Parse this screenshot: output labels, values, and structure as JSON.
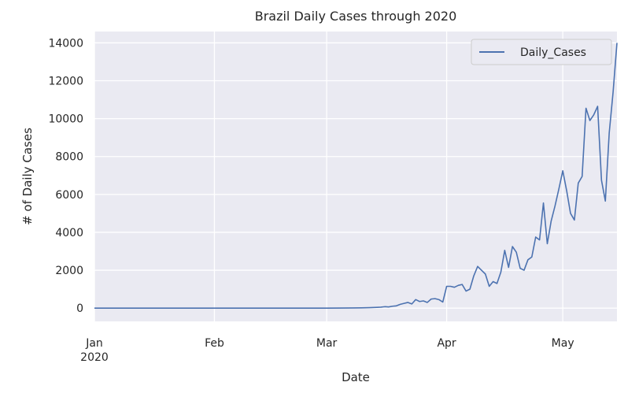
{
  "chart_data": {
    "type": "line",
    "title": "Brazil Daily Cases through 2020",
    "xlabel": "Date",
    "ylabel": "# of Daily Cases",
    "xlim": [
      "2020-01-01",
      "2020-05-15"
    ],
    "ylim": [
      -700,
      14600
    ],
    "grid": true,
    "legend": "top-right",
    "x_ticks": [
      {
        "date": "2020-01-01",
        "label": "Jan",
        "sublabel": "2020"
      },
      {
        "date": "2020-02-01",
        "label": "Feb"
      },
      {
        "date": "2020-03-01",
        "label": "Mar"
      },
      {
        "date": "2020-04-01",
        "label": "Apr"
      },
      {
        "date": "2020-05-01",
        "label": "May"
      }
    ],
    "y_ticks": [
      0,
      2000,
      4000,
      6000,
      8000,
      10000,
      12000,
      14000
    ],
    "series": [
      {
        "name": "Daily_Cases",
        "color": "#4c72b0",
        "points": [
          [
            "2020-01-01",
            0
          ],
          [
            "2020-02-25",
            0
          ],
          [
            "2020-03-01",
            0
          ],
          [
            "2020-03-05",
            3
          ],
          [
            "2020-03-08",
            10
          ],
          [
            "2020-03-10",
            15
          ],
          [
            "2020-03-12",
            25
          ],
          [
            "2020-03-14",
            40
          ],
          [
            "2020-03-15",
            50
          ],
          [
            "2020-03-16",
            75
          ],
          [
            "2020-03-17",
            60
          ],
          [
            "2020-03-18",
            100
          ],
          [
            "2020-03-19",
            120
          ],
          [
            "2020-03-20",
            200
          ],
          [
            "2020-03-21",
            250
          ],
          [
            "2020-03-22",
            300
          ],
          [
            "2020-03-23",
            220
          ],
          [
            "2020-03-24",
            450
          ],
          [
            "2020-03-25",
            350
          ],
          [
            "2020-03-26",
            380
          ],
          [
            "2020-03-27",
            300
          ],
          [
            "2020-03-28",
            480
          ],
          [
            "2020-03-29",
            500
          ],
          [
            "2020-03-30",
            450
          ],
          [
            "2020-03-31",
            320
          ],
          [
            "2020-04-01",
            1150
          ],
          [
            "2020-04-02",
            1150
          ],
          [
            "2020-04-03",
            1100
          ],
          [
            "2020-04-04",
            1200
          ],
          [
            "2020-04-05",
            1250
          ],
          [
            "2020-04-06",
            900
          ],
          [
            "2020-04-07",
            1000
          ],
          [
            "2020-04-08",
            1700
          ],
          [
            "2020-04-09",
            2200
          ],
          [
            "2020-04-10",
            2000
          ],
          [
            "2020-04-11",
            1800
          ],
          [
            "2020-04-12",
            1150
          ],
          [
            "2020-04-13",
            1400
          ],
          [
            "2020-04-14",
            1300
          ],
          [
            "2020-04-15",
            1900
          ],
          [
            "2020-04-16",
            3050
          ],
          [
            "2020-04-17",
            2150
          ],
          [
            "2020-04-18",
            3250
          ],
          [
            "2020-04-19",
            2950
          ],
          [
            "2020-04-20",
            2100
          ],
          [
            "2020-04-21",
            2000
          ],
          [
            "2020-04-22",
            2550
          ],
          [
            "2020-04-23",
            2700
          ],
          [
            "2020-04-24",
            3750
          ],
          [
            "2020-04-25",
            3600
          ],
          [
            "2020-04-26",
            5550
          ],
          [
            "2020-04-27",
            3400
          ],
          [
            "2020-04-28",
            4600
          ],
          [
            "2020-04-29",
            5400
          ],
          [
            "2020-04-30",
            6300
          ],
          [
            "2020-05-01",
            7250
          ],
          [
            "2020-05-02",
            6200
          ],
          [
            "2020-05-03",
            5000
          ],
          [
            "2020-05-04",
            4650
          ],
          [
            "2020-05-05",
            6600
          ],
          [
            "2020-05-06",
            6950
          ],
          [
            "2020-05-07",
            10550
          ],
          [
            "2020-05-08",
            9900
          ],
          [
            "2020-05-09",
            10200
          ],
          [
            "2020-05-10",
            10650
          ],
          [
            "2020-05-11",
            6750
          ],
          [
            "2020-05-12",
            5650
          ],
          [
            "2020-05-13",
            9250
          ],
          [
            "2020-05-14",
            11400
          ],
          [
            "2020-05-15",
            14000
          ]
        ]
      }
    ]
  }
}
